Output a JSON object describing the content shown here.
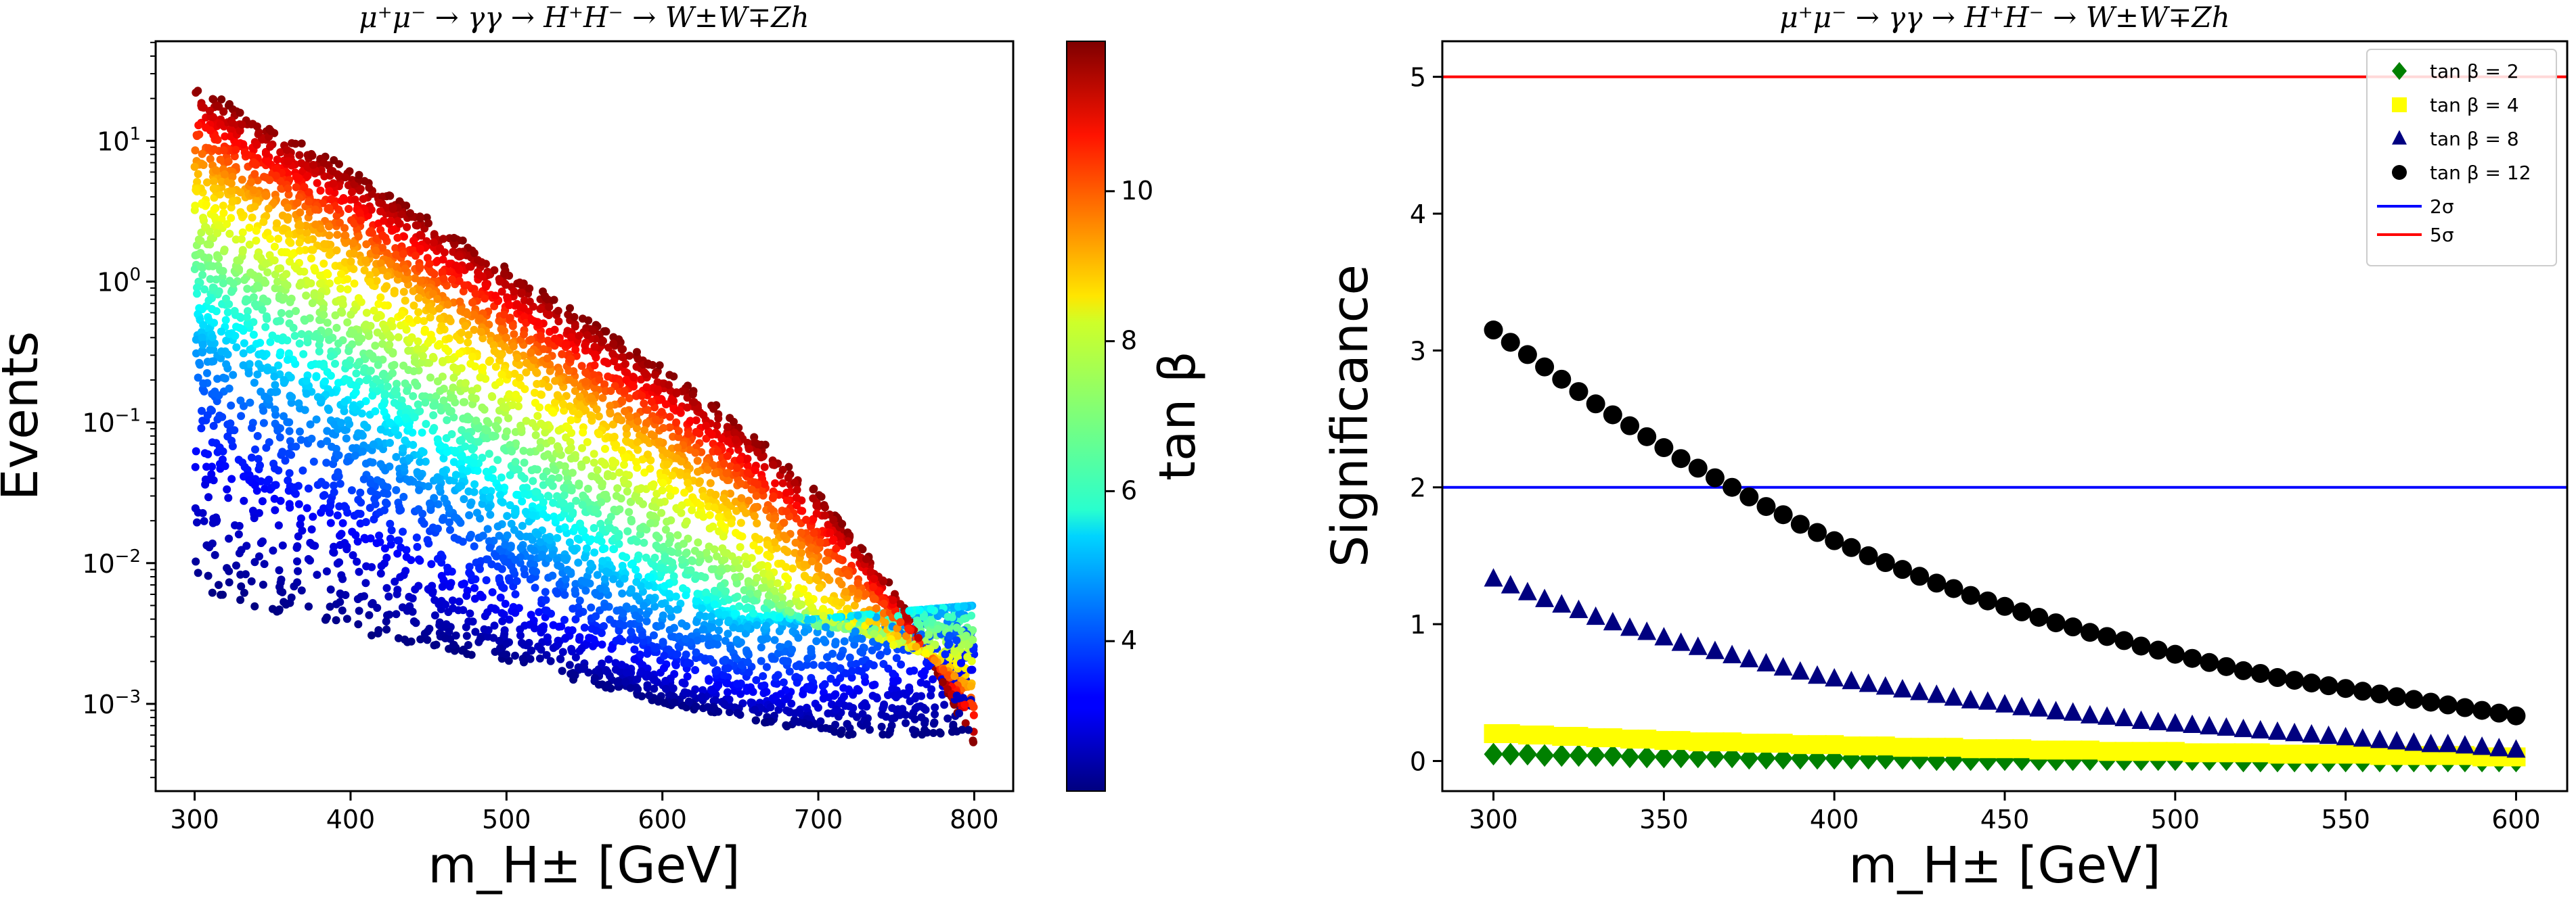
{
  "chart_data": [
    {
      "type": "scatter",
      "title": "μ⁺μ⁻  →  γγ  →  H⁺H⁻  →  W±W∓Zh",
      "xlabel": "m_H± [GeV]",
      "ylabel": "Events",
      "yscale": "log",
      "xlim": [
        275,
        825
      ],
      "ylim": [
        0.00024,
        51
      ],
      "xticks": [
        "300",
        "400",
        "500",
        "600",
        "700",
        "800"
      ],
      "yticks": [
        "10^-3",
        "10^-2",
        "10^-1",
        "10^0",
        "10^1"
      ],
      "colorbar": {
        "label": "tan β",
        "range": [
          2,
          12
        ],
        "ticks": [
          "4",
          "6",
          "8",
          "10"
        ],
        "colormap": "jet"
      },
      "grid_m": [
        300,
        350,
        400,
        450,
        500,
        550,
        600,
        650,
        700,
        750,
        800
      ],
      "grid_tanb": [
        2,
        3,
        4,
        5,
        6,
        7,
        8,
        9,
        10,
        11,
        12
      ],
      "events": [
        [
          0.0063,
          0.0045,
          0.0032,
          0.0025,
          0.002,
          0.0014,
          0.001,
          0.00079,
          0.00063,
          0.00056,
          0.00063
        ],
        [
          0.04,
          0.022,
          0.013,
          0.0071,
          0.004,
          0.0025,
          0.0016,
          0.0011,
          0.001,
          0.0013,
          0.0016
        ],
        [
          0.16,
          0.079,
          0.04,
          0.02,
          0.01,
          0.005,
          0.0028,
          0.002,
          0.002,
          0.0025,
          0.0032
        ],
        [
          0.4,
          0.2,
          0.1,
          0.045,
          0.02,
          0.01,
          0.005,
          0.0035,
          0.004,
          0.0045,
          0.005
        ],
        [
          0.79,
          0.4,
          0.2,
          0.089,
          0.04,
          0.018,
          0.0079,
          0.0045,
          0.004,
          0.0045,
          0.005
        ],
        [
          1.6,
          0.79,
          0.4,
          0.18,
          0.079,
          0.035,
          0.016,
          0.0071,
          0.0035,
          0.0032,
          0.0032
        ],
        [
          3.2,
          1.6,
          0.79,
          0.35,
          0.16,
          0.071,
          0.032,
          0.013,
          0.0045,
          0.0025,
          0.002
        ],
        [
          6.3,
          3.2,
          1.6,
          0.71,
          0.32,
          0.14,
          0.063,
          0.025,
          0.0079,
          0.0032,
          0.0013
        ],
        [
          10,
          5.0,
          2.5,
          1.1,
          0.5,
          0.22,
          0.1,
          0.04,
          0.014,
          0.004,
          0.001
        ],
        [
          16,
          7.9,
          4.0,
          1.8,
          0.79,
          0.35,
          0.16,
          0.063,
          0.022,
          0.005,
          0.00071
        ],
        [
          25,
          12.6,
          6.3,
          2.8,
          1.26,
          0.56,
          0.25,
          0.1,
          0.032,
          0.0063,
          0.0005
        ]
      ]
    },
    {
      "type": "scatter",
      "title": "μ⁺μ⁻  →  γγ  →  H⁺H⁻  →  W±W∓Zh",
      "xlabel": "m_H± [GeV]",
      "ylabel": "Significance",
      "xlim": [
        285,
        615
      ],
      "ylim": [
        -0.22,
        5.26
      ],
      "xticks": [
        "300",
        "350",
        "400",
        "450",
        "500",
        "550",
        "600"
      ],
      "yticks": [
        "0",
        "1",
        "2",
        "3",
        "4",
        "5"
      ],
      "legend_position": "top-right",
      "x": {
        "start": 300,
        "step": 5,
        "count": 61
      },
      "series": [
        {
          "name": "tan β = 2",
          "marker": "diamond",
          "color": "#008000",
          "values": [
            0.05,
            0.05,
            0.05,
            0.04,
            0.04,
            0.04,
            0.04,
            0.04,
            0.03,
            0.03,
            0.03,
            0.03,
            0.03,
            0.03,
            0.03,
            0.02,
            0.02,
            0.02,
            0.02,
            0.02,
            0.02,
            0.02,
            0.02,
            0.02,
            0.02,
            0.02,
            0.01,
            0.01,
            0.01,
            0.01,
            0.01,
            0.01,
            0.01,
            0.01,
            0.01,
            0.01,
            0.01,
            0.01,
            0.01,
            0.01,
            0.01,
            0.01,
            0.01,
            0.01,
            0.0,
            0.0,
            0.0,
            0.0,
            0.0,
            0.0,
            0.0,
            0.0,
            0.0,
            0.0,
            0.0,
            0.0,
            0.0,
            0.0,
            0.0,
            0.0,
            0.0
          ]
        },
        {
          "name": "tan β = 4",
          "marker": "square",
          "color": "#ffff00",
          "values": [
            0.2,
            0.2,
            0.19,
            0.19,
            0.18,
            0.18,
            0.17,
            0.17,
            0.16,
            0.16,
            0.15,
            0.15,
            0.14,
            0.14,
            0.14,
            0.13,
            0.13,
            0.13,
            0.12,
            0.12,
            0.12,
            0.11,
            0.11,
            0.11,
            0.1,
            0.1,
            0.1,
            0.1,
            0.09,
            0.09,
            0.09,
            0.09,
            0.08,
            0.08,
            0.08,
            0.08,
            0.07,
            0.07,
            0.07,
            0.07,
            0.07,
            0.06,
            0.06,
            0.06,
            0.06,
            0.06,
            0.05,
            0.05,
            0.05,
            0.05,
            0.05,
            0.05,
            0.04,
            0.04,
            0.04,
            0.04,
            0.04,
            0.04,
            0.03,
            0.03,
            0.03
          ]
        },
        {
          "name": "tan β = 8",
          "marker": "triangle",
          "color": "#000080",
          "values": [
            1.33,
            1.28,
            1.23,
            1.18,
            1.14,
            1.1,
            1.05,
            1.01,
            0.97,
            0.94,
            0.9,
            0.86,
            0.83,
            0.8,
            0.77,
            0.74,
            0.71,
            0.68,
            0.65,
            0.62,
            0.6,
            0.58,
            0.56,
            0.54,
            0.52,
            0.5,
            0.48,
            0.46,
            0.44,
            0.43,
            0.41,
            0.39,
            0.38,
            0.36,
            0.35,
            0.33,
            0.32,
            0.31,
            0.29,
            0.28,
            0.27,
            0.26,
            0.25,
            0.24,
            0.23,
            0.22,
            0.21,
            0.2,
            0.19,
            0.18,
            0.17,
            0.16,
            0.15,
            0.14,
            0.13,
            0.12,
            0.12,
            0.11,
            0.1,
            0.09,
            0.08
          ]
        },
        {
          "name": "tan β = 12",
          "marker": "circle",
          "color": "#000000",
          "values": [
            3.15,
            3.06,
            2.97,
            2.88,
            2.79,
            2.7,
            2.61,
            2.53,
            2.45,
            2.37,
            2.29,
            2.21,
            2.14,
            2.07,
            2.0,
            1.93,
            1.86,
            1.8,
            1.73,
            1.67,
            1.61,
            1.56,
            1.5,
            1.45,
            1.4,
            1.35,
            1.3,
            1.26,
            1.21,
            1.17,
            1.13,
            1.09,
            1.05,
            1.01,
            0.98,
            0.94,
            0.91,
            0.88,
            0.84,
            0.81,
            0.78,
            0.75,
            0.72,
            0.69,
            0.66,
            0.64,
            0.61,
            0.59,
            0.57,
            0.55,
            0.53,
            0.51,
            0.49,
            0.47,
            0.45,
            0.43,
            0.41,
            0.39,
            0.37,
            0.35,
            0.33
          ]
        }
      ],
      "hlines": [
        {
          "name": "2σ",
          "y": 2,
          "color": "#0000ff"
        },
        {
          "name": "5σ",
          "y": 5,
          "color": "#ff0000"
        }
      ]
    }
  ]
}
